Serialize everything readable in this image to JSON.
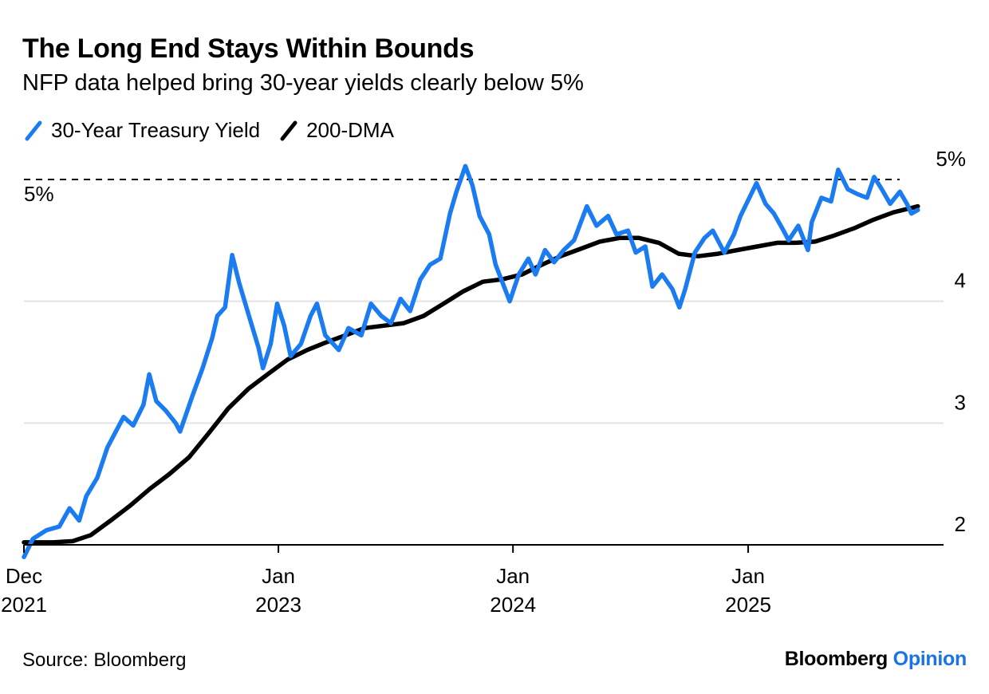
{
  "title": "The Long End Stays Within Bounds",
  "subtitle": "NFP data helped bring 30-year yields clearly below 5%",
  "source": "Source: Bloomberg",
  "brand": {
    "name": "Bloomberg",
    "accent": "Opinion",
    "accent_color": "#1a73e8"
  },
  "chart_data": {
    "type": "line",
    "title": "The Long End Stays Within Bounds",
    "subtitle": "NFP data helped bring 30-year yields clearly below 5%",
    "xlabel": "",
    "ylabel": "",
    "xlim": [
      "2021-12-01",
      "2025-11-01"
    ],
    "ylim": [
      1.95,
      5.2
    ],
    "yticks": [
      {
        "value": 2,
        "label": "2"
      },
      {
        "value": 3,
        "label": "3"
      },
      {
        "value": 4,
        "label": "4"
      },
      {
        "value": 5,
        "label": "5%"
      }
    ],
    "xticks": [
      {
        "date": "2021-12-01",
        "line1": "Dec",
        "line2": "2021"
      },
      {
        "date": "2023-01-01",
        "line1": "Jan",
        "line2": "2023"
      },
      {
        "date": "2024-01-01",
        "line1": "Jan",
        "line2": "2024"
      },
      {
        "date": "2025-01-01",
        "line1": "Jan",
        "line2": "2025"
      }
    ],
    "grid": "horizontal",
    "legend_position": "top-left",
    "reference_line": {
      "value": 5,
      "label": "5%",
      "style": "dashed"
    },
    "series": [
      {
        "name": "30-Year Treasury Yield",
        "color": "#1a7cf0",
        "points": [
          [
            "2021-12-01",
            1.9
          ],
          [
            "2021-12-15",
            2.05
          ],
          [
            "2022-01-05",
            2.12
          ],
          [
            "2022-01-25",
            2.15
          ],
          [
            "2022-02-10",
            2.3
          ],
          [
            "2022-02-25",
            2.2
          ],
          [
            "2022-03-08",
            2.4
          ],
          [
            "2022-03-25",
            2.55
          ],
          [
            "2022-04-10",
            2.8
          ],
          [
            "2022-04-25",
            2.95
          ],
          [
            "2022-05-05",
            3.05
          ],
          [
            "2022-05-20",
            2.98
          ],
          [
            "2022-06-05",
            3.15
          ],
          [
            "2022-06-14",
            3.4
          ],
          [
            "2022-06-25",
            3.18
          ],
          [
            "2022-07-10",
            3.1
          ],
          [
            "2022-07-25",
            3.0
          ],
          [
            "2022-08-01",
            2.93
          ],
          [
            "2022-08-20",
            3.22
          ],
          [
            "2022-09-05",
            3.45
          ],
          [
            "2022-09-20",
            3.7
          ],
          [
            "2022-09-28",
            3.88
          ],
          [
            "2022-10-10",
            3.95
          ],
          [
            "2022-10-21",
            4.38
          ],
          [
            "2022-11-01",
            4.15
          ],
          [
            "2022-11-15",
            3.9
          ],
          [
            "2022-12-01",
            3.62
          ],
          [
            "2022-12-08",
            3.45
          ],
          [
            "2022-12-20",
            3.65
          ],
          [
            "2022-12-30",
            3.98
          ],
          [
            "2023-01-10",
            3.8
          ],
          [
            "2023-01-20",
            3.55
          ],
          [
            "2023-02-05",
            3.65
          ],
          [
            "2023-02-20",
            3.88
          ],
          [
            "2023-03-02",
            3.98
          ],
          [
            "2023-03-15",
            3.72
          ],
          [
            "2023-04-05",
            3.6
          ],
          [
            "2023-04-20",
            3.78
          ],
          [
            "2023-05-10",
            3.72
          ],
          [
            "2023-05-25",
            3.98
          ],
          [
            "2023-06-10",
            3.88
          ],
          [
            "2023-06-25",
            3.82
          ],
          [
            "2023-07-10",
            4.02
          ],
          [
            "2023-07-25",
            3.92
          ],
          [
            "2023-08-10",
            4.18
          ],
          [
            "2023-08-25",
            4.3
          ],
          [
            "2023-09-10",
            4.35
          ],
          [
            "2023-09-25",
            4.72
          ],
          [
            "2023-10-05",
            4.9
          ],
          [
            "2023-10-19",
            5.11
          ],
          [
            "2023-10-30",
            4.95
          ],
          [
            "2023-11-10",
            4.7
          ],
          [
            "2023-11-25",
            4.55
          ],
          [
            "2023-12-05",
            4.3
          ],
          [
            "2023-12-27",
            4.0
          ],
          [
            "2024-01-10",
            4.22
          ],
          [
            "2024-01-25",
            4.35
          ],
          [
            "2024-02-05",
            4.22
          ],
          [
            "2024-02-20",
            4.42
          ],
          [
            "2024-03-05",
            4.32
          ],
          [
            "2024-03-20",
            4.42
          ],
          [
            "2024-04-05",
            4.5
          ],
          [
            "2024-04-25",
            4.78
          ],
          [
            "2024-05-10",
            4.62
          ],
          [
            "2024-05-28",
            4.7
          ],
          [
            "2024-06-10",
            4.55
          ],
          [
            "2024-06-28",
            4.58
          ],
          [
            "2024-07-10",
            4.4
          ],
          [
            "2024-07-25",
            4.45
          ],
          [
            "2024-08-05",
            4.12
          ],
          [
            "2024-08-20",
            4.22
          ],
          [
            "2024-09-05",
            4.1
          ],
          [
            "2024-09-16",
            3.95
          ],
          [
            "2024-09-25",
            4.1
          ],
          [
            "2024-10-10",
            4.4
          ],
          [
            "2024-10-25",
            4.52
          ],
          [
            "2024-11-07",
            4.58
          ],
          [
            "2024-11-25",
            4.4
          ],
          [
            "2024-12-10",
            4.55
          ],
          [
            "2024-12-20",
            4.7
          ],
          [
            "2025-01-14",
            4.97
          ],
          [
            "2025-01-28",
            4.8
          ],
          [
            "2025-02-10",
            4.72
          ],
          [
            "2025-02-25",
            4.58
          ],
          [
            "2025-03-05",
            4.5
          ],
          [
            "2025-03-20",
            4.62
          ],
          [
            "2025-04-04",
            4.42
          ],
          [
            "2025-04-10",
            4.65
          ],
          [
            "2025-04-25",
            4.85
          ],
          [
            "2025-05-10",
            4.82
          ],
          [
            "2025-05-21",
            5.08
          ],
          [
            "2025-06-05",
            4.92
          ],
          [
            "2025-06-20",
            4.88
          ],
          [
            "2025-07-05",
            4.85
          ],
          [
            "2025-07-16",
            5.02
          ],
          [
            "2025-07-28",
            4.92
          ],
          [
            "2025-08-10",
            4.8
          ],
          [
            "2025-08-25",
            4.9
          ],
          [
            "2025-09-05",
            4.8
          ],
          [
            "2025-09-12",
            4.72
          ],
          [
            "2025-09-22",
            4.75
          ]
        ]
      },
      {
        "name": "200-DMA",
        "color": "#000000",
        "points": [
          [
            "2021-12-01",
            2.02
          ],
          [
            "2022-01-15",
            2.02
          ],
          [
            "2022-02-15",
            2.03
          ],
          [
            "2022-03-15",
            2.08
          ],
          [
            "2022-04-15",
            2.2
          ],
          [
            "2022-05-15",
            2.32
          ],
          [
            "2022-06-15",
            2.46
          ],
          [
            "2022-07-15",
            2.58
          ],
          [
            "2022-08-15",
            2.72
          ],
          [
            "2022-09-15",
            2.92
          ],
          [
            "2022-10-15",
            3.12
          ],
          [
            "2022-11-15",
            3.28
          ],
          [
            "2022-12-15",
            3.4
          ],
          [
            "2023-01-15",
            3.52
          ],
          [
            "2023-02-15",
            3.6
          ],
          [
            "2023-03-15",
            3.66
          ],
          [
            "2023-04-15",
            3.72
          ],
          [
            "2023-05-15",
            3.78
          ],
          [
            "2023-06-15",
            3.8
          ],
          [
            "2023-07-15",
            3.82
          ],
          [
            "2023-08-15",
            3.88
          ],
          [
            "2023-09-15",
            3.98
          ],
          [
            "2023-10-15",
            4.08
          ],
          [
            "2023-11-15",
            4.16
          ],
          [
            "2023-12-15",
            4.18
          ],
          [
            "2024-01-15",
            4.22
          ],
          [
            "2024-02-15",
            4.3
          ],
          [
            "2024-03-15",
            4.37
          ],
          [
            "2024-04-15",
            4.43
          ],
          [
            "2024-05-15",
            4.49
          ],
          [
            "2024-06-15",
            4.52
          ],
          [
            "2024-07-15",
            4.52
          ],
          [
            "2024-08-15",
            4.48
          ],
          [
            "2024-09-15",
            4.39
          ],
          [
            "2024-10-15",
            4.37
          ],
          [
            "2024-11-15",
            4.39
          ],
          [
            "2024-12-15",
            4.42
          ],
          [
            "2025-01-15",
            4.45
          ],
          [
            "2025-02-15",
            4.48
          ],
          [
            "2025-03-15",
            4.48
          ],
          [
            "2025-04-15",
            4.49
          ],
          [
            "2025-05-15",
            4.54
          ],
          [
            "2025-06-15",
            4.6
          ],
          [
            "2025-07-15",
            4.67
          ],
          [
            "2025-08-15",
            4.73
          ],
          [
            "2025-09-22",
            4.78
          ]
        ]
      }
    ]
  }
}
